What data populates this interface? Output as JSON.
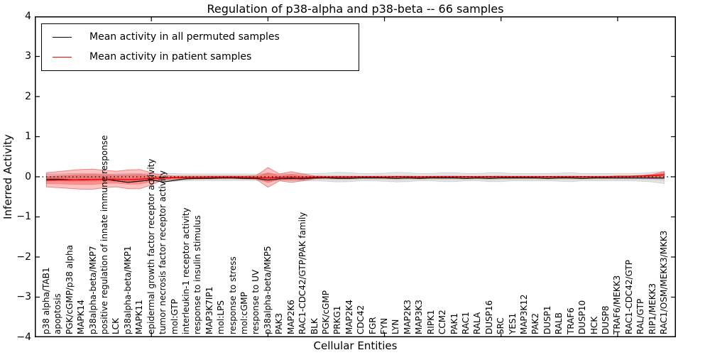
{
  "title": "Regulation of p38-alpha and p38-beta -- 66 samples",
  "legend": [
    {
      "label": "Mean activity in all permuted samples",
      "color": "#000000"
    },
    {
      "label": "Mean activity in patient samples",
      "color": "#ff0000"
    }
  ],
  "colors": {
    "permuted_line": "#000000",
    "patient_line": "#ff0000",
    "permuted_band": "#d9d9d9",
    "patient_band": "#f4a0a0",
    "zero_line": "#000000"
  },
  "chart_data": {
    "type": "line",
    "title": "Regulation of p38-alpha and p38-beta -- 66 samples",
    "xlabel": "Cellular Entities",
    "ylabel": "Inferred Activity",
    "ylim": [
      -4,
      4
    ],
    "yticks": [
      4,
      3,
      2,
      1,
      0,
      -1,
      -2,
      -3,
      -4
    ],
    "ytick_labels": [
      "4",
      "3",
      "2",
      "1",
      "0",
      "−1",
      "−2",
      "−3",
      "−4"
    ],
    "xticks_units": [
      10,
      20,
      30,
      40,
      50
    ],
    "x_units_span": 55,
    "grid": false,
    "legend_position": "upper left",
    "zero_line": {
      "y": 0,
      "style": "dotted"
    },
    "categories": [
      "p38 alpha/TAB1",
      "apoptosis",
      "PGK/cGMP/p38 alpha",
      "MAPK14",
      "p38alpha-beta/MKP7",
      "positive regulation of innate immune response",
      "LCK",
      "p38alpha-beta/MKP1",
      "MAPK11",
      "epidermal growth factor receptor activity",
      "tumor necrosis factor receptor activity",
      "mol:GTP",
      "interleukin-1 receptor activity",
      "response to insulin stimulus",
      "MAP3K7IP1",
      "mol:LPS",
      "response to stress",
      "mol:cGMP",
      "response to UV",
      "p38alpha-beta/MKP5",
      "PAK3",
      "MAP2K6",
      "RAC1-CDC42/GTP/PAK family",
      "BLK",
      "PGK/cGMP",
      "PRKG1",
      "MAP2K4",
      "CDC42",
      "FGR",
      "FYN",
      "LYN",
      "MAP2K3",
      "MAP3K3",
      "RIPK1",
      "CCM2",
      "PAK1",
      "RAC1",
      "RALA",
      "DUSP16",
      "SRC",
      "YES1",
      "MAP3K12",
      "PAK2",
      "DUSP1",
      "RALB",
      "TRAF6",
      "DUSP10",
      "HCK",
      "DUSP8",
      "TRAF6/MEKK3",
      "RAC1-CDC42/GTP",
      "RAL/GTP",
      "RIP1/MEKK3",
      "RAC1/OSM/MEKK3/MKK3"
    ],
    "series": [
      {
        "name": "Mean activity in all permuted samples",
        "color": "#000000",
        "values": [
          -0.06,
          -0.06,
          -0.07,
          -0.08,
          -0.07,
          -0.06,
          -0.1,
          -0.14,
          -0.11,
          -0.08,
          -0.13,
          -0.09,
          -0.05,
          -0.04,
          -0.04,
          -0.03,
          -0.03,
          -0.04,
          -0.04,
          -0.08,
          -0.05,
          -0.04,
          -0.05,
          -0.03,
          -0.03,
          -0.04,
          -0.04,
          -0.03,
          -0.03,
          -0.03,
          -0.04,
          -0.03,
          -0.04,
          -0.03,
          -0.03,
          -0.03,
          -0.04,
          -0.03,
          -0.04,
          -0.03,
          -0.03,
          -0.03,
          -0.03,
          -0.04,
          -0.03,
          -0.03,
          -0.04,
          -0.03,
          -0.03,
          -0.03,
          -0.03,
          -0.03,
          -0.03,
          -0.03
        ]
      },
      {
        "name": "Mean activity in patient samples",
        "color": "#ff0000",
        "values": [
          -0.09,
          -0.08,
          -0.08,
          -0.07,
          -0.07,
          -0.06,
          -0.06,
          -0.07,
          -0.06,
          -0.04,
          -0.03,
          -0.02,
          -0.02,
          -0.02,
          -0.01,
          -0.01,
          -0.01,
          -0.01,
          -0.02,
          -0.03,
          -0.02,
          -0.01,
          -0.02,
          -0.01,
          -0.01,
          -0.01,
          -0.01,
          0,
          0,
          -0.01,
          0,
          0,
          -0.01,
          0,
          0,
          0,
          0,
          0,
          0,
          0,
          0,
          0,
          0,
          0,
          0,
          0,
          0,
          0,
          0,
          0.01,
          0.01,
          0.02,
          0.03,
          0.05
        ]
      }
    ],
    "bands": [
      {
        "name": "permuted-spread",
        "series": "Mean activity in all permuted samples",
        "upper": [
          0.07,
          0.07,
          0.08,
          0.08,
          0.08,
          0.07,
          0.07,
          0.08,
          0.08,
          0.07,
          0.08,
          0.08,
          0.07,
          0.07,
          0.07,
          0.07,
          0.07,
          0.07,
          0.07,
          0.08,
          0.07,
          0.07,
          0.08,
          0.08,
          0.09,
          0.11,
          0.1,
          0.08,
          0.08,
          0.09,
          0.11,
          0.1,
          0.08,
          0.08,
          0.1,
          0.1,
          0.08,
          0.08,
          0.1,
          0.1,
          0.08,
          0.08,
          0.08,
          0.08,
          0.09,
          0.1,
          0.08,
          0.08,
          0.08,
          0.08,
          0.08,
          0.09,
          0.11,
          0.14
        ],
        "lower": [
          -0.1,
          -0.1,
          -0.11,
          -0.11,
          -0.11,
          -0.1,
          -0.11,
          -0.12,
          -0.11,
          -0.1,
          -0.12,
          -0.11,
          -0.1,
          -0.09,
          -0.09,
          -0.09,
          -0.09,
          -0.09,
          -0.09,
          -0.11,
          -0.09,
          -0.09,
          -0.1,
          -0.1,
          -0.11,
          -0.13,
          -0.12,
          -0.1,
          -0.1,
          -0.11,
          -0.13,
          -0.12,
          -0.1,
          -0.1,
          -0.12,
          -0.12,
          -0.1,
          -0.1,
          -0.12,
          -0.12,
          -0.1,
          -0.1,
          -0.1,
          -0.1,
          -0.11,
          -0.12,
          -0.1,
          -0.1,
          -0.1,
          -0.1,
          -0.1,
          -0.11,
          -0.13,
          -0.17
        ]
      },
      {
        "name": "patient-spread",
        "series": "Mean activity in patient samples",
        "upper": [
          0.1,
          0.13,
          0.16,
          0.18,
          0.19,
          0.16,
          0.14,
          0.17,
          0.18,
          0.1,
          0.03,
          0.02,
          0.02,
          0.02,
          0.02,
          0.02,
          0.02,
          0.02,
          0.03,
          0.23,
          0.07,
          0.13,
          0.07,
          0.02,
          0.01,
          0.01,
          0.01,
          0.01,
          0.01,
          0.01,
          0.01,
          0.01,
          0.01,
          0.01,
          0.01,
          0.01,
          0.01,
          0.01,
          0.01,
          0.01,
          0.01,
          0.01,
          0.01,
          0.01,
          0.01,
          0.01,
          0.01,
          0.01,
          0.01,
          0.02,
          0.02,
          0.03,
          0.06,
          0.13
        ],
        "lower": [
          -0.25,
          -0.27,
          -0.29,
          -0.31,
          -0.31,
          -0.27,
          -0.25,
          -0.3,
          -0.3,
          -0.2,
          -0.08,
          -0.06,
          -0.05,
          -0.05,
          -0.04,
          -0.04,
          -0.04,
          -0.05,
          -0.06,
          -0.26,
          -0.1,
          -0.14,
          -0.1,
          -0.05,
          -0.03,
          -0.03,
          -0.03,
          -0.03,
          -0.03,
          -0.03,
          -0.03,
          -0.03,
          -0.03,
          -0.03,
          -0.03,
          -0.03,
          -0.03,
          -0.03,
          -0.03,
          -0.03,
          -0.03,
          -0.03,
          -0.03,
          -0.03,
          -0.03,
          -0.03,
          -0.03,
          -0.03,
          -0.03,
          -0.03,
          -0.03,
          -0.03,
          -0.04,
          -0.04
        ]
      }
    ]
  }
}
